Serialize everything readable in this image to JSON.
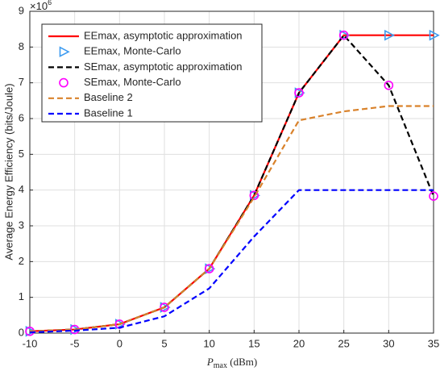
{
  "chart_data": {
    "type": "line",
    "y_multiplier": {
      "base": "×10",
      "exponent": "6"
    },
    "xlabel": {
      "symbol": "P",
      "subscript": "max",
      "unit": "(dBm)"
    },
    "ylabel": "Average Energy Efficiency (bits/Joule)",
    "x": [
      -10,
      -5,
      0,
      5,
      10,
      15,
      20,
      25,
      30,
      35
    ],
    "series": [
      {
        "name": "EEmax, asymptotic approximation",
        "color": "#ff0000",
        "line_style": "solid",
        "marker": "none",
        "values": [
          0.05,
          0.1,
          0.25,
          0.72,
          1.8,
          3.85,
          6.72,
          8.33,
          8.33,
          8.33
        ]
      },
      {
        "name": "EEmax, Monte-Carlo",
        "color": "#3d9bf0",
        "line_style": "none",
        "marker": "triangle-right",
        "values": [
          0.05,
          0.1,
          0.25,
          0.72,
          1.8,
          3.85,
          6.72,
          8.33,
          8.33,
          8.33
        ]
      },
      {
        "name": "SEmax, asymptotic approximation",
        "color": "#000000",
        "line_style": "dashed",
        "marker": "none",
        "values": [
          0.05,
          0.1,
          0.25,
          0.72,
          1.8,
          3.85,
          6.72,
          8.33,
          6.93,
          3.83
        ]
      },
      {
        "name": "SEmax, Monte-Carlo",
        "color": "#ff00ff",
        "line_style": "none",
        "marker": "circle",
        "values": [
          0.05,
          0.1,
          0.25,
          0.72,
          1.8,
          3.85,
          6.72,
          8.33,
          6.93,
          3.83
        ]
      },
      {
        "name": "Baseline 2",
        "color": "#d9822b",
        "line_style": "dashed",
        "marker": "none",
        "values": [
          0.05,
          0.1,
          0.25,
          0.72,
          1.8,
          3.8,
          5.95,
          6.2,
          6.35,
          6.35
        ]
      },
      {
        "name": "Baseline 1",
        "color": "#0000ff",
        "line_style": "dashed",
        "marker": "none",
        "values": [
          0.02,
          0.07,
          0.15,
          0.47,
          1.25,
          2.7,
          4.0,
          4.0,
          4.0,
          4.0
        ]
      }
    ],
    "xlim": [
      -10,
      35
    ],
    "xticks": [
      -10,
      -5,
      0,
      5,
      10,
      15,
      20,
      25,
      30,
      35
    ],
    "ylim": [
      0,
      9
    ],
    "yticks": [
      0,
      1,
      2,
      3,
      4,
      5,
      6,
      7,
      8,
      9
    ],
    "grid": true,
    "legend": "upper-left"
  }
}
